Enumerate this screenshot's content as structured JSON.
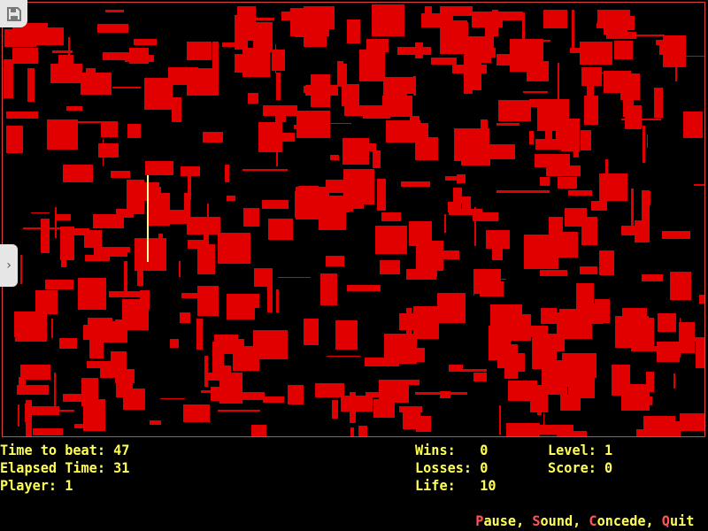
{
  "colors": {
    "block": "#e00000",
    "border": "#e04040",
    "hud_text": "#ffff55",
    "hotkey": "#ff5555",
    "player": "#ffff99"
  },
  "hud": {
    "time_to_beat": "Time to beat: 47",
    "elapsed_time": "Elapsed Time: 31",
    "player": "Player: 1",
    "wins": "Wins:   0",
    "losses": "Losses: 0",
    "life": "Life:   10",
    "level": "Level: 1",
    "score": "Score: 0"
  },
  "commands": [
    {
      "key": "P",
      "rest": "ause",
      "sep": ", "
    },
    {
      "key": "S",
      "rest": "ound",
      "sep": ", "
    },
    {
      "key": "C",
      "rest": "oncede",
      "sep": ", "
    },
    {
      "key": "Q",
      "rest": "uit",
      "sep": ""
    }
  ],
  "icons": {
    "save": "floppy-disk-icon",
    "sidetab": "chevron-right-icon"
  }
}
